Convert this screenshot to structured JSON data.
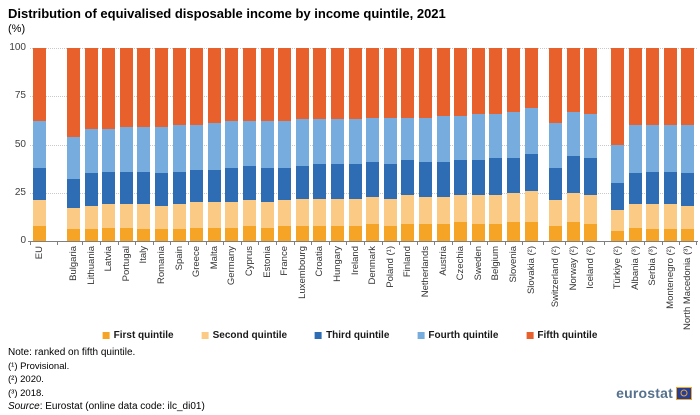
{
  "header": {
    "title": "Distribution of equivalised disposable income by income quintile, 2021",
    "unit": "(%)"
  },
  "colors": {
    "q1": "#f6a426",
    "q2": "#fbcb85",
    "q3": "#2e6db4",
    "q4": "#77acdf",
    "q5": "#e8612c",
    "grid": "#c9c9c9",
    "axis": "#7f7f7f",
    "logo_text": "#56718e",
    "flag_blue": "#233e9b",
    "flag_ring": "#f5a623"
  },
  "chart_data": {
    "type": "bar",
    "stacked": true,
    "percent_stacked": true,
    "grid": true,
    "legend_position": "bottom",
    "ylim": [
      0,
      100
    ],
    "yticks": [
      0,
      25,
      50,
      75,
      100
    ],
    "group_breaks_after": [
      0,
      27,
      30
    ],
    "categories": [
      "EU",
      "Bulgaria",
      "Lithuania",
      "Latvia",
      "Portugal",
      "Italy",
      "Romania",
      "Spain",
      "Greece",
      "Malta",
      "Germany",
      "Cyprus",
      "Estonia",
      "France",
      "Luxembourg",
      "Croatia",
      "Hungary",
      "Ireland",
      "Denmark",
      "Poland (¹)",
      "Finland",
      "Netherlands",
      "Austria",
      "Czechia",
      "Sweden",
      "Belgium",
      "Slovenia",
      "Slovakia (²)",
      "Switzerland (²)",
      "Norway (²)",
      "Iceland (²)",
      "Türkiye (²)",
      "Albania (³)",
      "Serbia (³)",
      "Montenegro (²)",
      "North Macedonia (³)"
    ],
    "series": [
      {
        "name": "First quintile",
        "color_key": "q1",
        "values": [
          8,
          6,
          6,
          7,
          7,
          6,
          6,
          6,
          7,
          7,
          7,
          8,
          7,
          8,
          8,
          8,
          8,
          8,
          9,
          8,
          9,
          9,
          9,
          10,
          9,
          9,
          10,
          10,
          8,
          10,
          9,
          5,
          7,
          6,
          6,
          6
        ]
      },
      {
        "name": "Second quintile",
        "color_key": "q2",
        "values": [
          13,
          11,
          12,
          12,
          12,
          13,
          12,
          13,
          13,
          13,
          13,
          13,
          13,
          13,
          14,
          14,
          14,
          14,
          14,
          14,
          15,
          14,
          14,
          14,
          15,
          15,
          15,
          16,
          13,
          15,
          15,
          11,
          12,
          13,
          13,
          12
        ]
      },
      {
        "name": "Third quintile",
        "color_key": "q3",
        "values": [
          17,
          15,
          17,
          17,
          17,
          17,
          17,
          17,
          17,
          17,
          18,
          18,
          18,
          17,
          17,
          18,
          18,
          18,
          18,
          18,
          18,
          18,
          18,
          18,
          18,
          19,
          18,
          19,
          17,
          19,
          19,
          14,
          16,
          17,
          17,
          17
        ]
      },
      {
        "name": "Fourth quintile",
        "color_key": "q4",
        "values": [
          24,
          22,
          23,
          22,
          23,
          23,
          24,
          24,
          23,
          24,
          24,
          23,
          24,
          24,
          24,
          23,
          23,
          23,
          23,
          24,
          22,
          23,
          24,
          23,
          24,
          23,
          24,
          24,
          23,
          23,
          23,
          20,
          25,
          24,
          24,
          25
        ]
      },
      {
        "name": "Fifth quintile",
        "color_key": "q5",
        "values": [
          38,
          46,
          42,
          42,
          41,
          41,
          41,
          40,
          40,
          39,
          38,
          38,
          38,
          38,
          37,
          37,
          37,
          37,
          36,
          36,
          36,
          36,
          35,
          35,
          34,
          34,
          33,
          31,
          39,
          33,
          34,
          50,
          40,
          40,
          40,
          40
        ]
      }
    ]
  },
  "notes": {
    "note": "Note: ranked on fifth quintile.",
    "fn1": "(¹) Provisional.",
    "fn2": "(²) 2020.",
    "fn3": "(³) 2018.",
    "source_prefix": "Source",
    "source_rest": ": Eurostat (online data code: ilc_di01)"
  },
  "logo": {
    "text": "eurostat"
  }
}
